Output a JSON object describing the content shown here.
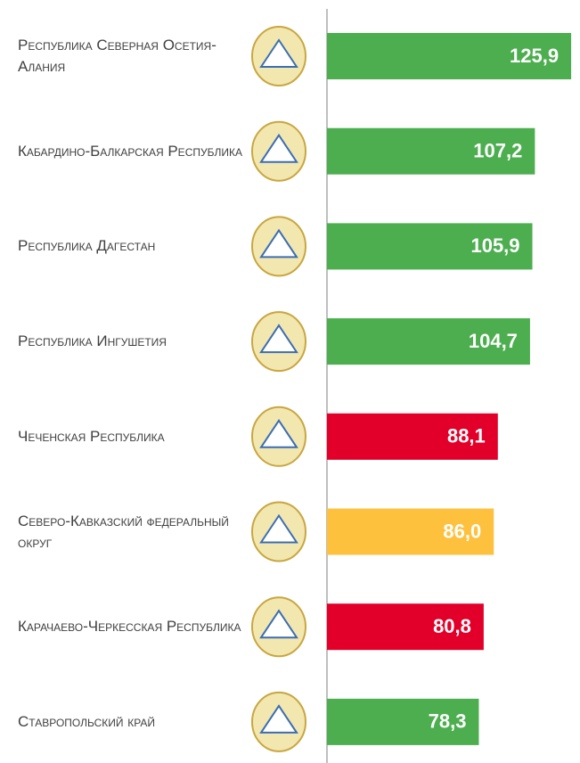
{
  "chart_data": {
    "type": "bar",
    "orientation": "horizontal",
    "categories": [
      "Республика Северная Осетия-Алания",
      "Кабардино-Балкарская Республика",
      "Республика Дагестан",
      "Республика Ингушетия",
      "Чеченская Республика",
      "Северо-Кавказский федеральный округ",
      "Карачаево-Черкесская Республика",
      "Ставропольский край"
    ],
    "values": [
      125.9,
      107.2,
      105.9,
      104.7,
      88.1,
      86.0,
      80.8,
      78.3
    ],
    "value_labels": [
      "125,9",
      "107,2",
      "105,9",
      "104,7",
      "88,1",
      "86,0",
      "80,8",
      "78,3"
    ],
    "colors": [
      "#4cae4f",
      "#4cae4f",
      "#4cae4f",
      "#4cae4f",
      "#e2002a",
      "#fdc13e",
      "#e2002a",
      "#4cae4f"
    ],
    "xlim": [
      0,
      130
    ]
  }
}
